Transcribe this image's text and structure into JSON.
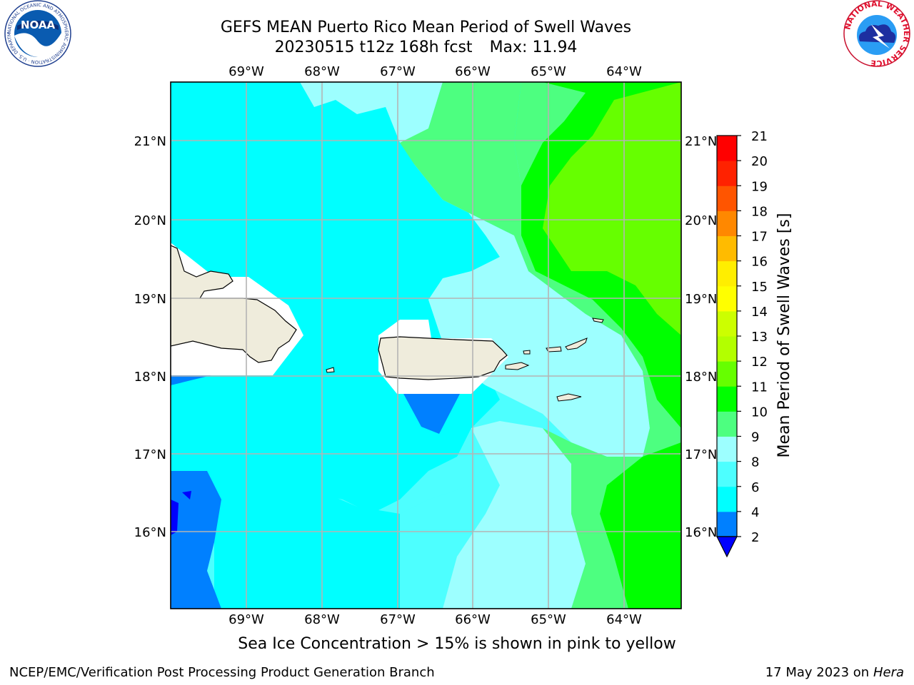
{
  "header": {
    "title_line1": "GEFS MEAN Puerto Rico Mean Period of Swell Waves",
    "title_line2_date": "20230515 t12z 168h fcst",
    "title_line2_max": "Max: 11.94"
  },
  "logos": {
    "left": {
      "text": "NOAA",
      "ring_text": "NATIONAL OCEANIC AND ATMOSPHERIC ADMINISTRATION · U.S. DEPARTMENT OF COMMERCE"
    },
    "right": {
      "ring_text": "NATIONAL WEATHER SERVICE"
    }
  },
  "map": {
    "lon_labels": [
      "69°W",
      "68°W",
      "67°W",
      "66°W",
      "65°W",
      "64°W"
    ],
    "lat_labels": [
      "21°N",
      "20°N",
      "19°N",
      "18°N",
      "17°N",
      "16°N"
    ],
    "extent": {
      "lon_min": -70,
      "lon_max": -63.25,
      "lat_min": 15,
      "lat_max": 21.75
    },
    "gridlines": true,
    "colors": {
      "land": "#efecdc",
      "coast": "#000000",
      "grid": "#b4b4b4",
      "mask": "#ffffff"
    }
  },
  "colorbar": {
    "label": "Mean Period of Swell Waves [s]",
    "tick_labels": [
      "2",
      "4",
      "6",
      "8",
      "9",
      "10",
      "11",
      "12",
      "13",
      "14",
      "15",
      "16",
      "17",
      "18",
      "19",
      "20",
      "21"
    ],
    "colors": [
      "#0000ff",
      "#0080ff",
      "#00ffff",
      "#4dffff",
      "#9dffff",
      "#4dff80",
      "#00ff00",
      "#66ff00",
      "#b3ff00",
      "#ccff00",
      "#ffff00",
      "#ffee00",
      "#ffbb00",
      "#ff8800",
      "#ff5500",
      "#ff2200",
      "#ff0000"
    ],
    "extend_min_color": "#0000ff"
  },
  "footer": {
    "note": "Sea Ice Concentration > 15% is shown in pink to yellow",
    "credit_left": "NCEP/EMC/Verification Post Processing Product Generation Branch",
    "credit_date": "17 May 2023 on",
    "credit_machine": "Hera"
  }
}
